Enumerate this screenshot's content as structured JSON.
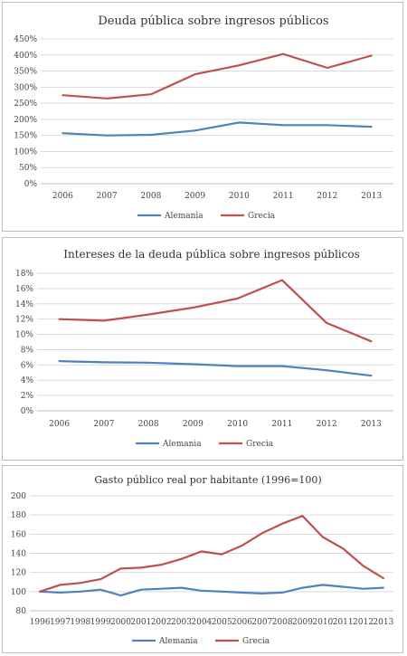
{
  "colors": {
    "alemania": "#4f81bd",
    "grecia": "#c0504d",
    "grid": "#d9d9d9",
    "axis": "#bfbfbf"
  },
  "chart_data": [
    {
      "type": "line",
      "title": "Deuda pública sobre ingresos públicos",
      "xlabel": "",
      "ylabel": "",
      "categories": [
        "2006",
        "2007",
        "2008",
        "2009",
        "2010",
        "2011",
        "2012",
        "2013"
      ],
      "ylim": [
        0,
        450
      ],
      "yticks": [
        0,
        50,
        100,
        150,
        200,
        250,
        300,
        350,
        400,
        450
      ],
      "ytick_labels": [
        "0%",
        "50%",
        "100%",
        "150%",
        "200%",
        "250%",
        "300%",
        "350%",
        "400%",
        "450%"
      ],
      "grid": true,
      "legend": "bottom",
      "series": [
        {
          "name": "Alemania",
          "color": "#4f81bd",
          "values": [
            157,
            150,
            152,
            165,
            190,
            182,
            182,
            177
          ]
        },
        {
          "name": "Grecia",
          "color": "#c0504d",
          "values": [
            275,
            265,
            278,
            340,
            368,
            403,
            360,
            398
          ]
        }
      ]
    },
    {
      "type": "line",
      "title": "Intereses de la deuda pública sobre ingresos públicos",
      "xlabel": "",
      "ylabel": "",
      "categories": [
        "2006",
        "2007",
        "2008",
        "2009",
        "2010",
        "2011",
        "2012",
        "2013"
      ],
      "ylim": [
        0,
        18
      ],
      "yticks": [
        0,
        2,
        4,
        6,
        8,
        10,
        12,
        14,
        16,
        18
      ],
      "ytick_labels": [
        "0%",
        "2%",
        "4%",
        "6%",
        "8%",
        "10%",
        "12%",
        "14%",
        "16%",
        "18%"
      ],
      "grid": true,
      "legend": "bottom",
      "series": [
        {
          "name": "Alemania",
          "color": "#4f81bd",
          "values": [
            6.5,
            6.35,
            6.3,
            6.1,
            5.85,
            5.85,
            5.3,
            4.6
          ]
        },
        {
          "name": "Grecia",
          "color": "#c0504d",
          "values": [
            12.0,
            11.8,
            12.6,
            13.5,
            14.7,
            17.1,
            11.5,
            9.1
          ]
        }
      ]
    },
    {
      "type": "line",
      "title": "Gasto público real por habitante (1996=100)",
      "xlabel": "",
      "ylabel": "",
      "categories": [
        "1996",
        "1997",
        "1998",
        "1999",
        "2000",
        "2001",
        "2002",
        "2003",
        "2004",
        "2005",
        "2006",
        "2007",
        "2008",
        "2009",
        "2010",
        "2011",
        "2012",
        "2013"
      ],
      "ylim": [
        80,
        200
      ],
      "yticks": [
        80,
        100,
        120,
        140,
        160,
        180,
        200
      ],
      "ytick_labels": [
        "80",
        "100",
        "120",
        "140",
        "160",
        "180",
        "200"
      ],
      "grid": true,
      "legend": "bottom",
      "series": [
        {
          "name": "Alemania",
          "color": "#4f81bd",
          "values": [
            100,
            99,
            100,
            102,
            96,
            102,
            103,
            104,
            101,
            100,
            99,
            98,
            99,
            104,
            107,
            105,
            103,
            104
          ]
        },
        {
          "name": "Grecia",
          "color": "#c0504d",
          "values": [
            100,
            107,
            109,
            113,
            124,
            125,
            128,
            134,
            142,
            139,
            148,
            161,
            171,
            179,
            157,
            145,
            127,
            114
          ]
        }
      ]
    }
  ]
}
